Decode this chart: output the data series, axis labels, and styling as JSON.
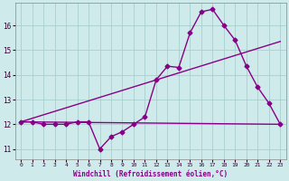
{
  "xlabel": "Windchill (Refroidissement éolien,°C)",
  "x_ticks": [
    0,
    1,
    2,
    3,
    4,
    5,
    6,
    7,
    8,
    9,
    10,
    11,
    12,
    13,
    14,
    15,
    16,
    17,
    18,
    19,
    20,
    21,
    22,
    23
  ],
  "ylim": [
    10.6,
    16.9
  ],
  "xlim": [
    -0.5,
    23.5
  ],
  "yticks": [
    11,
    12,
    13,
    14,
    15,
    16
  ],
  "background_color": "#ceeaea",
  "grid_color": "#aacece",
  "line_color": "#880088",
  "series1_x": [
    0,
    1,
    2,
    3,
    4,
    5,
    6,
    7,
    8,
    9,
    10,
    11,
    12,
    13,
    14,
    15,
    16,
    17,
    18,
    19,
    20,
    21,
    22,
    23
  ],
  "series1_y": [
    12.1,
    12.1,
    12.0,
    12.0,
    12.0,
    12.1,
    12.1,
    11.0,
    11.5,
    11.7,
    12.0,
    12.3,
    13.8,
    14.35,
    14.3,
    15.7,
    16.55,
    16.65,
    16.0,
    15.4,
    14.35,
    13.5,
    12.85,
    12.0
  ],
  "series2_x": [
    0,
    23
  ],
  "series2_y": [
    12.1,
    15.35
  ],
  "series3_x": [
    0,
    23
  ],
  "series3_y": [
    12.1,
    12.0
  ],
  "marker": "D",
  "markersize": 2.5,
  "linewidth": 1.0
}
